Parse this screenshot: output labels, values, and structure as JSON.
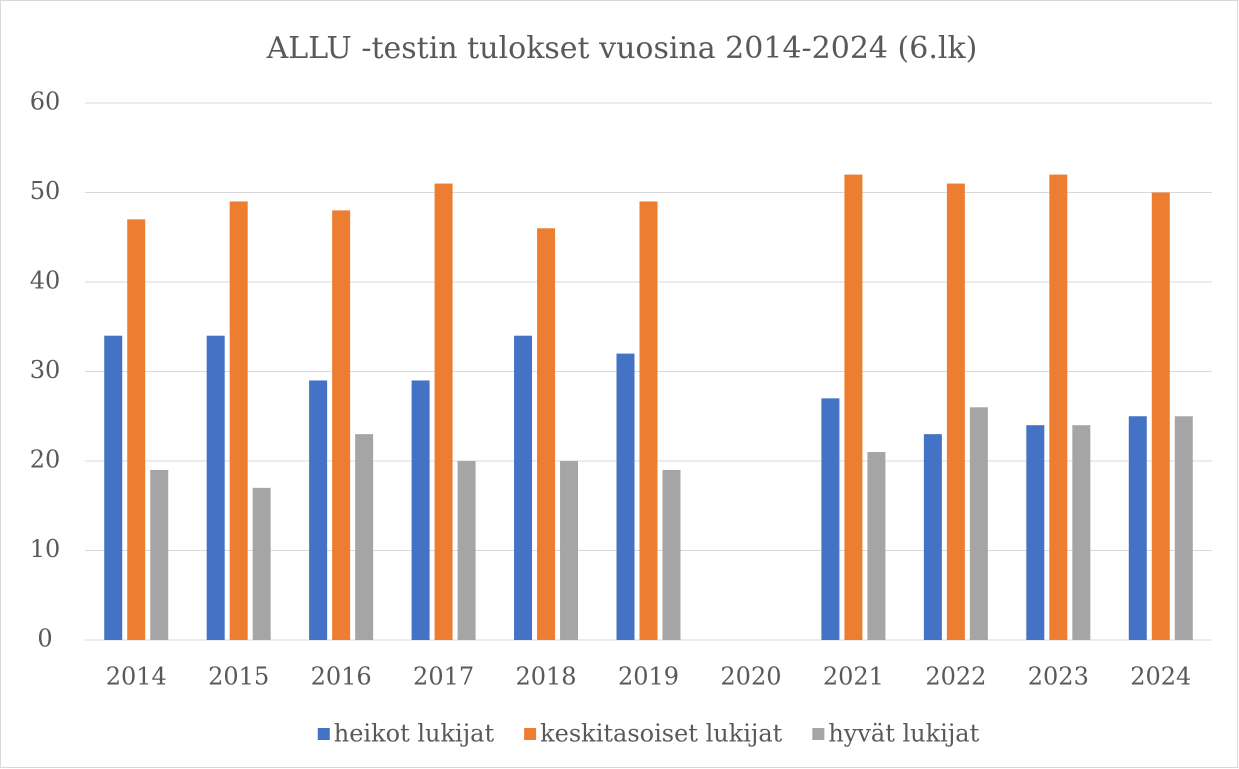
{
  "chart_data": {
    "type": "bar",
    "title": "ALLU -testin tulokset vuosina 2014-2024 (6.lk)",
    "categories": [
      "2014",
      "2015",
      "2016",
      "2017",
      "2018",
      "2019",
      "2020",
      "2021",
      "2022",
      "2023",
      "2024"
    ],
    "series": [
      {
        "name": "heikot lukijat",
        "color": "#4472c4",
        "values": [
          34,
          34,
          29,
          29,
          34,
          32,
          null,
          27,
          23,
          24,
          25
        ]
      },
      {
        "name": "keskitasoiset lukijat",
        "color": "#ed7d31",
        "values": [
          47,
          49,
          48,
          51,
          46,
          49,
          null,
          52,
          51,
          52,
          50
        ]
      },
      {
        "name": "hyvät lukijat",
        "color": "#a5a5a5",
        "values": [
          19,
          17,
          23,
          20,
          20,
          19,
          null,
          21,
          26,
          24,
          25
        ]
      }
    ],
    "ylim": [
      0,
      60
    ],
    "yticks": [
      0,
      10,
      20,
      30,
      40,
      50,
      60
    ],
    "grid": true,
    "legend": "bottom"
  }
}
